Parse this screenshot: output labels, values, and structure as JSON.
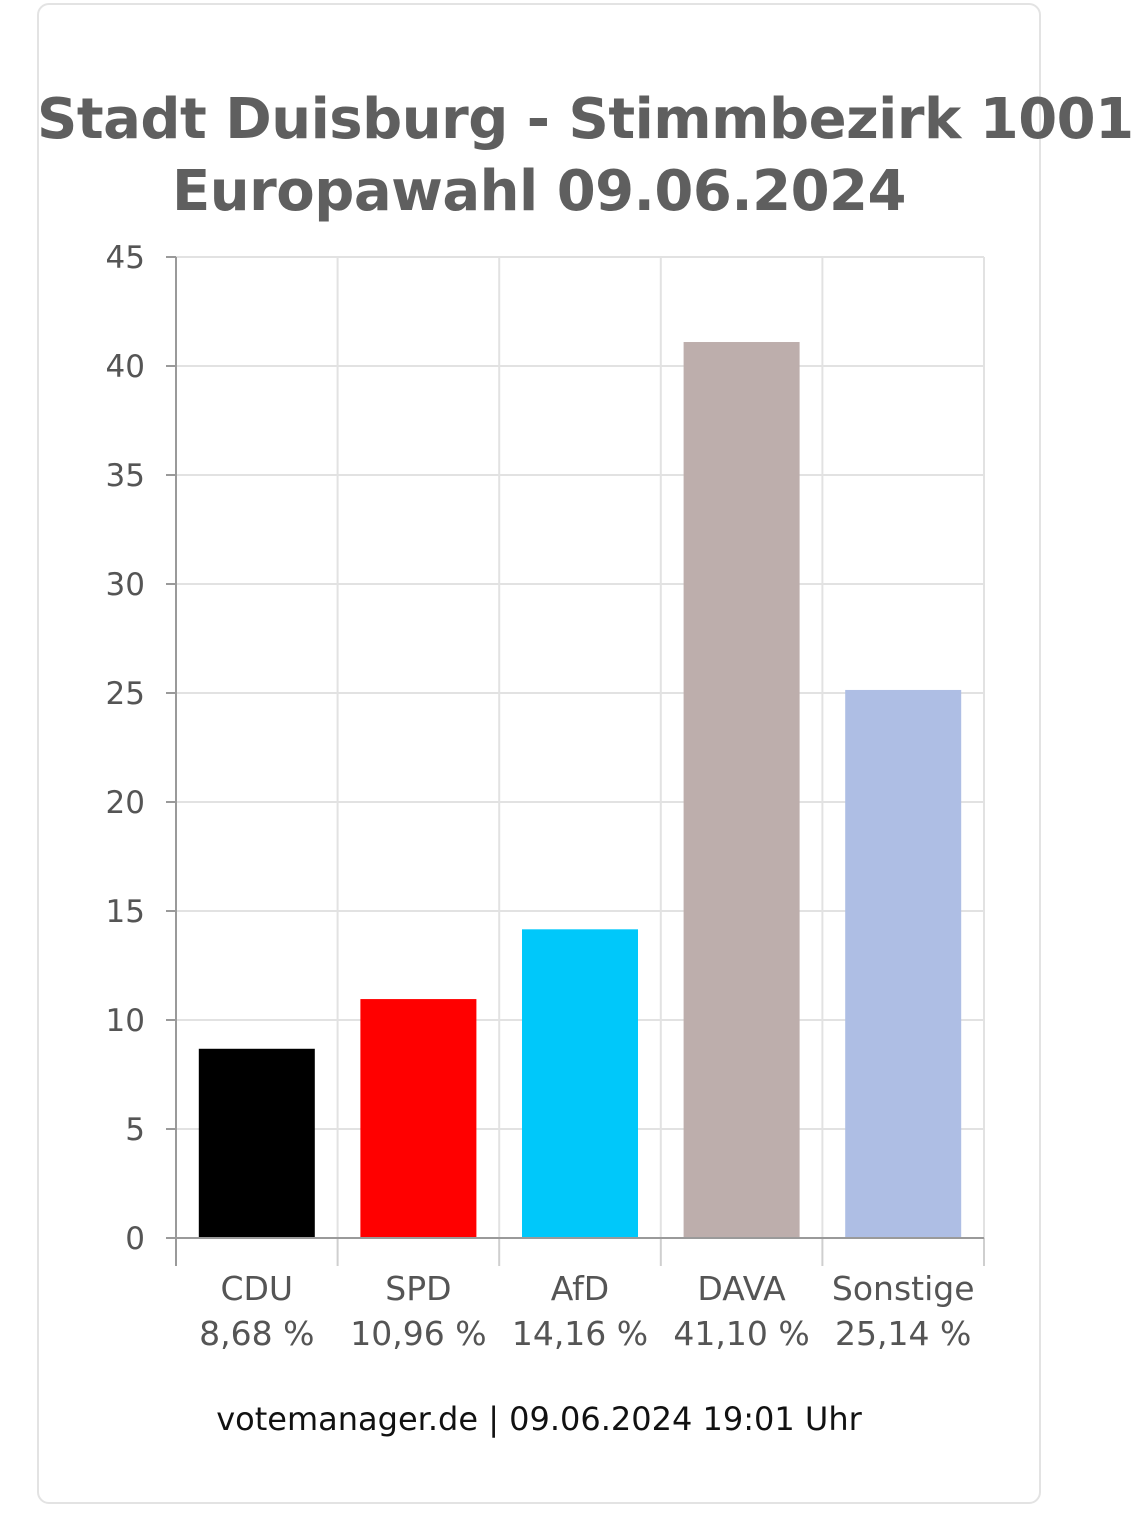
{
  "chart_data": {
    "type": "bar",
    "title": "Stadt Duisburg - Stimmbezirk 1001",
    "subtitle": "Europawahl 09.06.2024",
    "categories": [
      "CDU",
      "SPD",
      "AfD",
      "DAVA",
      "Sonstige"
    ],
    "value_labels": [
      "8,68 %",
      "10,96 %",
      "14,16 %",
      "41,10 %",
      "25,14 %"
    ],
    "values": [
      8.68,
      10.96,
      14.16,
      41.1,
      25.14
    ],
    "colors": [
      "#000000",
      "#ff0000",
      "#00c8fa",
      "#bdaeac",
      "#aebee4"
    ],
    "ylim": [
      0,
      45
    ],
    "yticks": [
      0,
      5,
      10,
      15,
      20,
      25,
      30,
      35,
      40,
      45
    ],
    "grid": true
  },
  "footer": {
    "source": "votemanager.de",
    "separator": "|",
    "timestamp": "09.06.2024 19:01 Uhr"
  }
}
